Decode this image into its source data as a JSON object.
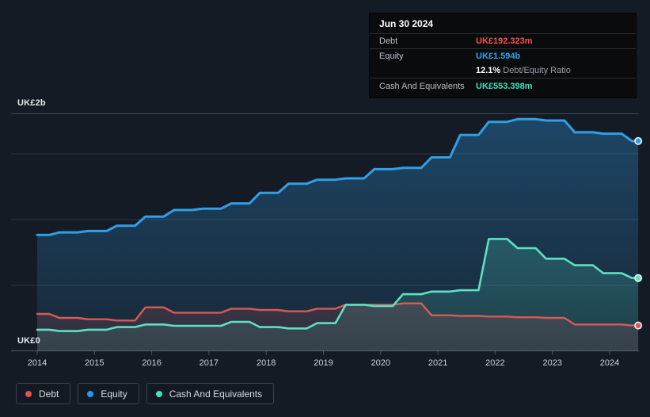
{
  "tooltip": {
    "date": "Jun 30 2024",
    "debt_label": "Debt",
    "debt_value": "UK£192.323m",
    "equity_label": "Equity",
    "equity_value": "UK£1.594b",
    "ratio_value": "12.1%",
    "ratio_label": "Debt/Equity Ratio",
    "cash_label": "Cash And Equivalents",
    "cash_value": "UK£553.398m"
  },
  "y_axis": {
    "top_label": "UK£2b",
    "bottom_label": "UK£0"
  },
  "legend": [
    {
      "label": "Debt",
      "color": "#e8504e"
    },
    {
      "label": "Equity",
      "color": "#1f9ded"
    },
    {
      "label": "Cash And Equivalents",
      "color": "#45e0bd"
    }
  ],
  "chart_data": {
    "type": "area",
    "title": "",
    "unit": "UK£ billions",
    "ylim": [
      0,
      2
    ],
    "gridline_interval": 0.5,
    "grid": true,
    "legend_position": "bottom-left",
    "x_tick_labels": [
      "2014",
      "2015",
      "2016",
      "2017",
      "2018",
      "2019",
      "2020",
      "2021",
      "2022",
      "2023",
      "2024"
    ],
    "x": [
      2014,
      2014.5,
      2015,
      2015.5,
      2016,
      2016.5,
      2017,
      2017.5,
      2018,
      2018.5,
      2019,
      2019.5,
      2020,
      2020.5,
      2021,
      2021.5,
      2022,
      2022.5,
      2023,
      2023.5,
      2024,
      2024.5
    ],
    "series": [
      {
        "name": "Debt",
        "color": "#d85a56",
        "values": [
          0.28,
          0.25,
          0.24,
          0.23,
          0.33,
          0.29,
          0.29,
          0.32,
          0.31,
          0.3,
          0.32,
          0.35,
          0.35,
          0.36,
          0.27,
          0.265,
          0.26,
          0.255,
          0.25,
          0.2,
          0.2,
          0.192
        ]
      },
      {
        "name": "Equity",
        "color": "#2f9fe8",
        "values": [
          0.88,
          0.9,
          0.91,
          0.95,
          1.02,
          1.07,
          1.08,
          1.12,
          1.2,
          1.27,
          1.3,
          1.31,
          1.38,
          1.39,
          1.47,
          1.64,
          1.74,
          1.76,
          1.75,
          1.66,
          1.65,
          1.594
        ]
      },
      {
        "name": "Cash And Equivalents",
        "color": "#5ee0c4",
        "values": [
          0.16,
          0.15,
          0.16,
          0.18,
          0.2,
          0.19,
          0.19,
          0.22,
          0.18,
          0.17,
          0.21,
          0.35,
          0.34,
          0.43,
          0.45,
          0.46,
          0.85,
          0.78,
          0.7,
          0.65,
          0.59,
          0.553
        ]
      }
    ],
    "last_point": {
      "date": "Jun 30 2024",
      "Debt": "UK£192.323m",
      "Equity": "UK£1.594b",
      "Cash And Equivalents": "UK£553.398m",
      "debt_equity_ratio": "12.1%"
    }
  }
}
